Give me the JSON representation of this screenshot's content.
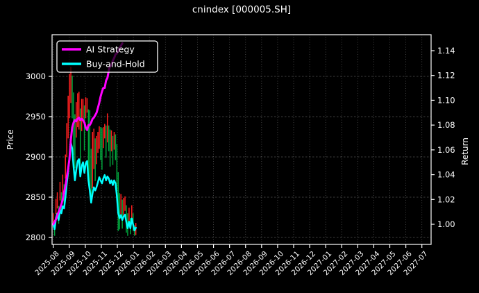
{
  "window": {
    "title": "cnindex [000005.SH]"
  },
  "chart_data": {
    "type": "candlestick_with_lines",
    "title": "cnindex [000005.SH]",
    "background": "#000000",
    "text_color": "#ffffff",
    "grid": true,
    "legend_position": "upper-left",
    "x_axis": {
      "tick_labels": [
        "2025-08",
        "2025-09",
        "2025-10",
        "2025-11",
        "2025-12",
        "2026-01",
        "2026-02",
        "2026-03",
        "2026-04",
        "2026-05",
        "2026-06",
        "2026-07",
        "2026-08",
        "2026-09",
        "2026-10",
        "2026-11",
        "2026-12",
        "2027-01",
        "2027-02",
        "2027-03",
        "2027-04",
        "2027-05",
        "2027-06",
        "2027-07"
      ]
    },
    "price_axis": {
      "label": "Price",
      "ticks": [
        2800,
        2850,
        2900,
        2950,
        3000
      ],
      "range": [
        2791,
        3052
      ]
    },
    "return_axis": {
      "label": "Return",
      "ticks": [
        1.0,
        1.02,
        1.04,
        1.06,
        1.08,
        1.1,
        1.12,
        1.14
      ],
      "tick_labels": [
        "1.00",
        "1.02",
        "1.04",
        "1.06",
        "1.08",
        "1.10",
        "1.12",
        "1.14"
      ],
      "range": [
        0.984,
        1.153
      ]
    },
    "candles": {
      "note": "daily bars, approx values read from plot; span 2025-08-01 to ~2026-01-09",
      "up_color": "#ff1f1f",
      "down_color": "#00a53c",
      "high": [
        2830,
        2817,
        2848,
        2856,
        2839,
        2869,
        2856,
        2878,
        2866,
        2903,
        2942,
        2976,
        3003,
        3012,
        3001,
        2980,
        2953,
        2968,
        2979,
        2981,
        2960,
        2972,
        2972,
        2964,
        2974,
        2973,
        2959,
        2958,
        2910,
        2931,
        2935,
        2923,
        2926,
        2931,
        2938,
        2937,
        2936,
        2937,
        2941,
        2939,
        2954,
        2939,
        2934,
        2933,
        2926,
        2931,
        2928,
        2916,
        2881,
        2855,
        2854,
        2847,
        2849,
        2851,
        2840,
        2830,
        2837,
        2824,
        2840,
        2830,
        2815,
        2818
      ],
      "low": [
        2814,
        2802,
        2829,
        2836,
        2817,
        2846,
        2834,
        2853,
        2842,
        2873,
        2900,
        2923,
        2948,
        2967,
        2948,
        2902,
        2886,
        2924,
        2937,
        2934,
        2890,
        2932,
        2947,
        2908,
        2948,
        2955,
        2876,
        2863,
        2845,
        2861,
        2885,
        2870,
        2891,
        2905,
        2910,
        2896,
        2884,
        2911,
        2923,
        2899,
        2918,
        2907,
        2888,
        2907,
        2890,
        2909,
        2896,
        2846,
        2808,
        2810,
        2827,
        2811,
        2827,
        2833,
        2806,
        2802,
        2815,
        2804,
        2818,
        2808,
        2802,
        2803
      ],
      "close": [
        2821,
        2810,
        2835,
        2845,
        2831,
        2854,
        2846,
        2862,
        2857,
        2883,
        2914,
        2941,
        2973,
        3007,
        2993,
        2952,
        2921,
        2944,
        2965,
        2969,
        2930,
        2954,
        2962,
        2938,
        2960,
        2965,
        2921,
        2898,
        2870,
        2891,
        2905,
        2898,
        2906,
        2917,
        2928,
        2921,
        2914,
        2925,
        2933,
        2921,
        2930,
        2925,
        2914,
        2921,
        2910,
        2921,
        2914,
        2886,
        2846,
        2835,
        2842,
        2831,
        2839,
        2843,
        2826,
        2812,
        2827,
        2812,
        2834,
        2820,
        2807,
        2813
      ]
    },
    "series": [
      {
        "name": "AI Strategy",
        "color": "#ff00ff",
        "axis": "return",
        "line_width": 3,
        "values": [
          1.0,
          1.002,
          1.004,
          1.007,
          1.01,
          1.013,
          1.016,
          1.02,
          1.026,
          1.031,
          1.038,
          1.045,
          1.053,
          1.068,
          1.078,
          1.082,
          1.084,
          1.083,
          1.085,
          1.086,
          1.084,
          1.085,
          1.084,
          1.082,
          1.078,
          1.076,
          1.08,
          1.08,
          1.082,
          1.085,
          1.086,
          1.088,
          1.09,
          1.094,
          1.098,
          1.103,
          1.107,
          1.11,
          1.11,
          1.116,
          1.118,
          1.124,
          1.128,
          1.128,
          1.132,
          1.134,
          1.137,
          1.138,
          1.14,
          1.142,
          1.144,
          1.146
        ]
      },
      {
        "name": "Buy-and-Hold",
        "color": "#00ffff",
        "axis": "return",
        "line_width": 2.5,
        "values": [
          1.0,
          0.9961,
          1.005,
          1.0085,
          1.0035,
          1.0117,
          1.0089,
          1.0145,
          1.0128,
          1.022,
          1.033,
          1.0425,
          1.0539,
          1.0659,
          1.061,
          1.0464,
          1.0354,
          1.0436,
          1.051,
          1.0525,
          1.0386,
          1.0471,
          1.05,
          1.0415,
          1.0493,
          1.051,
          1.0354,
          1.0273,
          1.0174,
          1.0248,
          1.0298,
          1.0273,
          1.0301,
          1.034,
          1.0379,
          1.0354,
          1.033,
          1.0369,
          1.0397,
          1.0354,
          1.0386,
          1.0369,
          1.033,
          1.0354,
          1.0316,
          1.0354,
          1.033,
          1.023,
          1.0089,
          1.005,
          1.0074,
          1.0035,
          1.0064,
          1.0078,
          1.0018,
          0.9968,
          1.0021,
          0.9968,
          1.0046,
          0.9996,
          0.995,
          0.9972
        ]
      }
    ]
  }
}
